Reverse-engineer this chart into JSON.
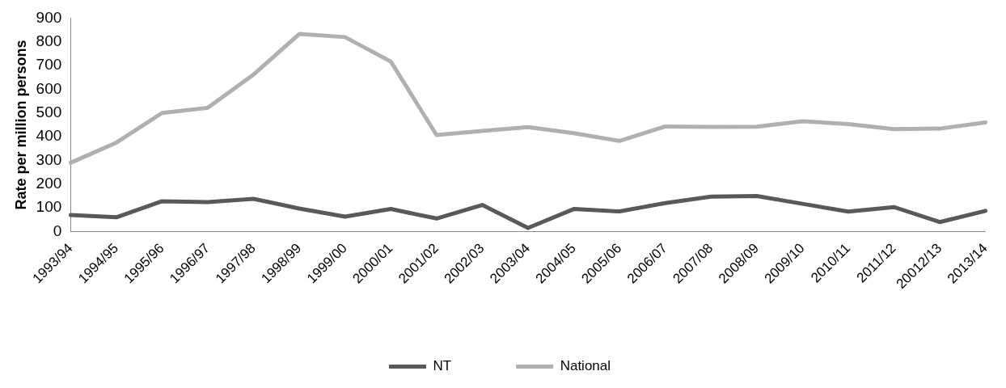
{
  "chart_data": {
    "type": "line",
    "ylabel": "Rate per million persons",
    "categories": [
      "1993/94",
      "1994/95",
      "1995/96",
      "1996/97",
      "1997/98",
      "1998/99",
      "1999/00",
      "2000/01",
      "2001/02",
      "2002/03",
      "2003/04",
      "2004/05",
      "2005/06",
      "2006/07",
      "2007/08",
      "2008/09",
      "2009/10",
      "2010/11",
      "2011/12",
      "20012/13",
      "2013/14"
    ],
    "series": [
      {
        "name": "NT",
        "color": "#595959",
        "values": [
          70,
          60,
          128,
          124,
          138,
          97,
          63,
          95,
          55,
          112,
          15,
          95,
          85,
          120,
          147,
          150,
          117,
          84,
          103,
          40,
          87
        ]
      },
      {
        "name": "National",
        "color": "#b0b0b0",
        "values": [
          290,
          375,
          500,
          522,
          662,
          833,
          820,
          717,
          407,
          424,
          440,
          415,
          382,
          443,
          441,
          442,
          465,
          453,
          432,
          434,
          460
        ]
      }
    ],
    "ylim": [
      0,
      900
    ],
    "yticks": [
      0,
      100,
      200,
      300,
      400,
      500,
      600,
      700,
      800,
      900
    ],
    "grid": false,
    "legend": "bottom",
    "marker": "none",
    "line_style": "solid"
  }
}
